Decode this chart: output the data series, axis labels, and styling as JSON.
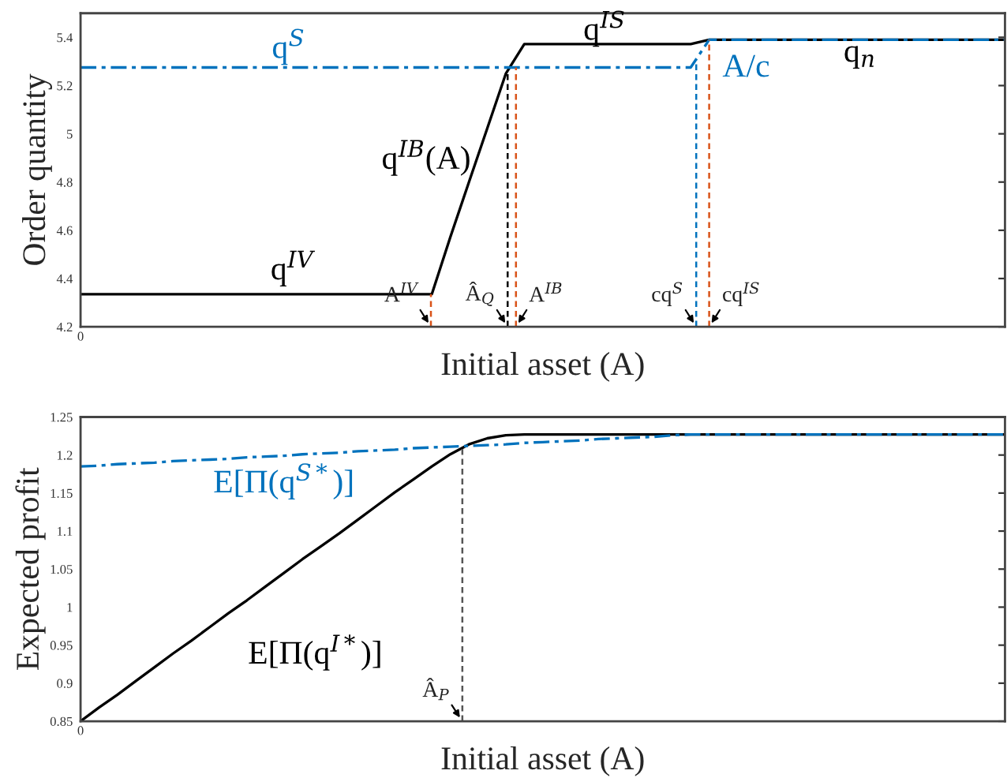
{
  "chart_data": [
    {
      "type": "line",
      "xlabel": "Initial asset (A)",
      "ylabel": "Order quantity",
      "categories": [
        null,
        null,
        null,
        null,
        null,
        null,
        null,
        null,
        null,
        null,
        null,
        null,
        null,
        null,
        null,
        null,
        null,
        null,
        null,
        null,
        null,
        null,
        null,
        null,
        null,
        null,
        null,
        null,
        null,
        null,
        null,
        null,
        null,
        null,
        null,
        null,
        null,
        null,
        null,
        null,
        null,
        null,
        null,
        null,
        null,
        null,
        null,
        null,
        null,
        null,
        null
      ],
      "ylim": [
        4.2,
        5.5
      ],
      "yticks": [
        4.2,
        4.4,
        4.6,
        4.8,
        5,
        5.2,
        5.4
      ],
      "series": [
        {
          "color": "#000000",
          "line_style": "solid",
          "values": [
            4.335,
            4.335,
            4.335,
            4.335,
            4.335,
            4.335,
            4.335,
            4.335,
            4.335,
            4.335,
            4.335,
            4.335,
            4.335,
            4.335,
            4.335,
            4.335,
            4.335,
            4.335,
            4.335,
            4.335,
            4.572,
            4.798,
            5.023,
            5.249,
            5.372,
            5.372,
            5.372,
            5.372,
            5.372,
            5.372,
            5.372,
            5.372,
            5.372,
            5.372,
            5.39,
            5.39,
            5.39,
            5.39,
            5.39,
            5.39,
            5.39,
            5.39,
            5.39,
            5.39,
            5.39,
            5.39,
            5.39,
            5.39,
            5.39,
            5.39,
            5.39
          ]
        },
        {
          "color": "#0072bd",
          "line_style": "dashdot",
          "values": [
            5.275,
            5.275,
            5.275,
            5.275,
            5.275,
            5.275,
            5.275,
            5.275,
            5.275,
            5.275,
            5.275,
            5.275,
            5.275,
            5.275,
            5.275,
            5.275,
            5.275,
            5.275,
            5.275,
            5.275,
            5.275,
            5.275,
            5.275,
            5.275,
            5.275,
            5.275,
            5.275,
            5.275,
            5.275,
            5.275,
            5.275,
            5.275,
            5.275,
            5.275,
            5.39,
            5.39,
            5.39,
            5.39,
            5.39,
            5.39,
            5.39,
            5.39,
            5.39,
            5.39,
            5.39,
            5.39,
            5.39,
            5.39,
            5.39,
            5.39,
            5.39
          ]
        }
      ],
      "annotations": [
        "0",
        "q$^{S}$",
        "q$^{IS}$",
        "A/c",
        "q$_{n}$",
        "q$^{IB}$(A)",
        "q$^{IV}$",
        "A$^{IV}$",
        "Â$_{Q}$",
        "A$^{IB}$",
        "cq$^{S}$",
        "cq$^{IS}$"
      ],
      "grid": false,
      "legend": false
    },
    {
      "type": "line",
      "xlabel": "Initial asset (A)",
      "ylabel": "Expected profit",
      "categories": [
        null,
        null,
        null,
        null,
        null,
        null,
        null,
        null,
        null,
        null,
        null,
        null,
        null,
        null,
        null,
        null,
        null,
        null,
        null,
        null,
        null,
        null,
        null,
        null,
        null,
        null,
        null,
        null,
        null,
        null,
        null,
        null,
        null,
        null,
        null,
        null,
        null,
        null,
        null,
        null,
        null,
        null,
        null,
        null,
        null,
        null,
        null,
        null,
        null,
        null,
        null
      ],
      "ylim": [
        0.85,
        1.25
      ],
      "yticks": [
        0.85,
        0.9,
        0.95,
        1,
        1.05,
        1.1,
        1.15,
        1.2,
        1.25
      ],
      "series": [
        {
          "color": "#000000",
          "line_style": "solid",
          "values": [
            0.85,
            0.868,
            0.885,
            0.903,
            0.921,
            0.939,
            0.956,
            0.974,
            0.992,
            1.009,
            1.027,
            1.045,
            1.063,
            1.08,
            1.097,
            1.115,
            1.133,
            1.151,
            1.168,
            1.185,
            1.201,
            1.214,
            1.222,
            1.226,
            1.227,
            1.227,
            1.227,
            1.227,
            1.227,
            1.227,
            1.227,
            1.227,
            1.227,
            1.227,
            1.227,
            1.227,
            1.227,
            1.227,
            1.227,
            1.227,
            1.227,
            1.227,
            1.227,
            1.227,
            1.227,
            1.227,
            1.227,
            1.227,
            1.227,
            1.227,
            1.227
          ]
        },
        {
          "color": "#0072bd",
          "line_style": "dashdot",
          "values": [
            1.185,
            1.186,
            1.188,
            1.189,
            1.19,
            1.192,
            1.193,
            1.194,
            1.195,
            1.197,
            1.198,
            1.199,
            1.201,
            1.202,
            1.203,
            1.205,
            1.206,
            1.207,
            1.209,
            1.21,
            1.211,
            1.212,
            1.213,
            1.214,
            1.216,
            1.217,
            1.218,
            1.219,
            1.221,
            1.222,
            1.223,
            1.224,
            1.226,
            1.227,
            1.227,
            1.227,
            1.227,
            1.227,
            1.227,
            1.227,
            1.227,
            1.227,
            1.227,
            1.227,
            1.227,
            1.227,
            1.227,
            1.227,
            1.227,
            1.227,
            1.227
          ]
        }
      ],
      "annotations": [
        "0",
        "E[Π(q$^{S*}$)]",
        "E[Π(q$^{I*}$)]",
        "Â$_{P}$"
      ],
      "grid": false,
      "legend": false
    }
  ]
}
